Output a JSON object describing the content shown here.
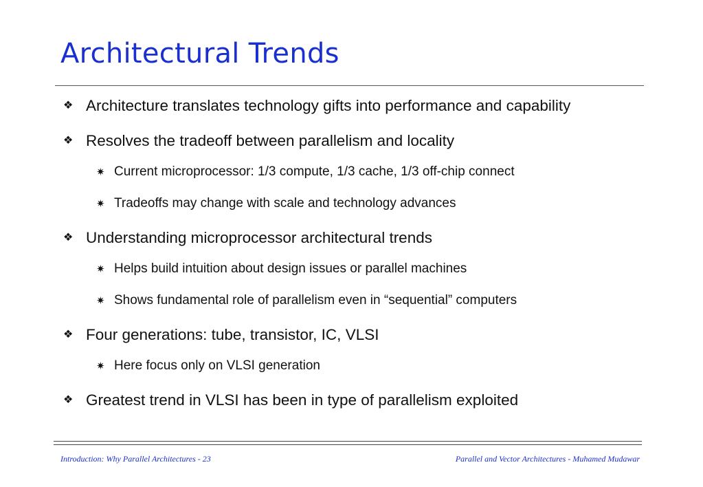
{
  "slide": {
    "title": "Architectural Trends",
    "bullets": [
      {
        "level": 1,
        "text": "Architecture translates technology gifts into performance and capability"
      },
      {
        "level": 1,
        "text": "Resolves the tradeoff between parallelism and locality"
      },
      {
        "level": 2,
        "text": "Current microprocessor: 1/3 compute, 1/3 cache, 1/3 off-chip connect"
      },
      {
        "level": 2,
        "text": "Tradeoffs may change with scale and technology advances"
      },
      {
        "level": 1,
        "text": "Understanding microprocessor architectural trends"
      },
      {
        "level": 2,
        "text": "Helps build intuition about design issues or parallel machines"
      },
      {
        "level": 2,
        "text": "Shows fundamental role of parallelism even in “sequential” computers"
      },
      {
        "level": 1,
        "text": "Four generations: tube, transistor, IC, VLSI"
      },
      {
        "level": 2,
        "text": "Here focus only on VLSI generation"
      },
      {
        "level": 1,
        "text": "Greatest trend in VLSI has been in type of parallelism exploited"
      }
    ],
    "bullet_icons": {
      "level1": "diamond-cross-icon",
      "level2": "asterisk-icon"
    }
  },
  "footer": {
    "left": "Introduction: Why Parallel Architectures - 23",
    "right": "Parallel and Vector Architectures - Muhamed Mudawar"
  }
}
